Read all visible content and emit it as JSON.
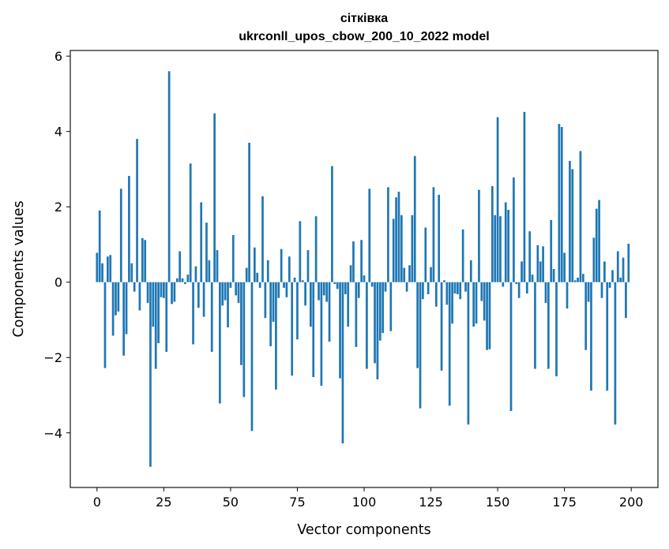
{
  "chart_data": {
    "type": "bar",
    "title": "сітківка",
    "subtitle": "ukrconll_upos_cbow_200_10_2022 model",
    "xlabel": "Vector components",
    "ylabel": "Components values",
    "xlim": [
      -10,
      210
    ],
    "ylim": [
      -5.45,
      6.15
    ],
    "xticks": [
      0,
      25,
      50,
      75,
      100,
      125,
      150,
      175,
      200
    ],
    "xtick_labels": [
      "0",
      "25",
      "50",
      "75",
      "100",
      "125",
      "150",
      "175",
      "200"
    ],
    "yticks": [
      -4,
      -2,
      0,
      2,
      4,
      6
    ],
    "ytick_labels": [
      "−4",
      "−2",
      "0",
      "2",
      "4",
      "6"
    ],
    "bar_color": "#1f77b4",
    "x": [
      0,
      1,
      2,
      3,
      4,
      5,
      6,
      7,
      8,
      9,
      10,
      11,
      12,
      13,
      14,
      15,
      16,
      17,
      18,
      19,
      20,
      21,
      22,
      23,
      24,
      25,
      26,
      27,
      28,
      29,
      30,
      31,
      32,
      33,
      34,
      35,
      36,
      37,
      38,
      39,
      40,
      41,
      42,
      43,
      44,
      45,
      46,
      47,
      48,
      49,
      50,
      51,
      52,
      53,
      54,
      55,
      56,
      57,
      58,
      59,
      60,
      61,
      62,
      63,
      64,
      65,
      66,
      67,
      68,
      69,
      70,
      71,
      72,
      73,
      74,
      75,
      76,
      77,
      78,
      79,
      80,
      81,
      82,
      83,
      84,
      85,
      86,
      87,
      88,
      89,
      90,
      91,
      92,
      93,
      94,
      95,
      96,
      97,
      98,
      99,
      100,
      101,
      102,
      103,
      104,
      105,
      106,
      107,
      108,
      109,
      110,
      111,
      112,
      113,
      114,
      115,
      116,
      117,
      118,
      119,
      120,
      121,
      122,
      123,
      124,
      125,
      126,
      127,
      128,
      129,
      130,
      131,
      132,
      133,
      134,
      135,
      136,
      137,
      138,
      139,
      140,
      141,
      142,
      143,
      144,
      145,
      146,
      147,
      148,
      149,
      150,
      151,
      152,
      153,
      154,
      155,
      156,
      157,
      158,
      159,
      160,
      161,
      162,
      163,
      164,
      165,
      166,
      167,
      168,
      169,
      170,
      171,
      172,
      173,
      174,
      175,
      176,
      177,
      178,
      179,
      180,
      181,
      182,
      183,
      184,
      185,
      186,
      187,
      188,
      189,
      190,
      191,
      192,
      193,
      194,
      195,
      196,
      197,
      198,
      199
    ],
    "values": [
      0.78,
      1.9,
      0.5,
      -2.28,
      0.68,
      0.72,
      -1.42,
      -0.88,
      -0.78,
      2.48,
      -1.95,
      -1.38,
      2.82,
      0.5,
      -0.25,
      3.8,
      -0.75,
      1.17,
      1.12,
      -0.55,
      -4.9,
      -1.18,
      -2.3,
      -1.62,
      -0.4,
      -0.42,
      -1.85,
      5.6,
      -0.58,
      -0.52,
      0.1,
      0.82,
      0.1,
      -0.05,
      0.2,
      3.15,
      -1.65,
      0.42,
      -0.68,
      2.12,
      -0.92,
      1.58,
      0.58,
      -1.85,
      4.48,
      0.85,
      -3.22,
      -0.62,
      -0.48,
      -1.2,
      -0.15,
      1.25,
      -0.35,
      -0.55,
      -2.2,
      -3.05,
      0.38,
      3.7,
      -3.95,
      0.92,
      0.25,
      -0.15,
      2.28,
      -0.95,
      0.58,
      -1.7,
      -1.05,
      -2.85,
      -0.42,
      0.88,
      -0.15,
      -0.4,
      0.68,
      -2.48,
      0.12,
      -1.52,
      1.62,
      0.05,
      -0.62,
      0.85,
      -1.18,
      -2.52,
      1.75,
      -0.48,
      -2.75,
      -0.35,
      -0.52,
      -1.58,
      3.08,
      -0.05,
      -0.18,
      -2.55,
      -4.28,
      -0.32,
      -1.18,
      0.45,
      1.08,
      -1.72,
      -0.42,
      1.12,
      0.18,
      -2.3,
      2.48,
      -0.12,
      -2.15,
      -2.58,
      -1.55,
      -1.35,
      -0.25,
      2.52,
      -1.3,
      1.68,
      2.25,
      2.4,
      1.78,
      0.38,
      -0.25,
      0.45,
      1.78,
      3.35,
      -2.28,
      -3.35,
      -0.45,
      1.45,
      -0.32,
      0.4,
      2.52,
      -0.65,
      2.32,
      -2.35,
      0.05,
      -0.6,
      -3.28,
      -1.1,
      -0.3,
      -0.32,
      -0.45,
      1.4,
      -0.25,
      -3.78,
      0.58,
      -1.18,
      -1.1,
      2.45,
      -0.5,
      -1.02,
      -1.8,
      -1.78,
      2.55,
      1.78,
      4.38,
      1.75,
      -0.12,
      2.12,
      1.92,
      -3.42,
      2.78,
      -0.05,
      -0.42,
      0.55,
      4.52,
      -0.3,
      1.35,
      0.2,
      -2.3,
      0.98,
      0.55,
      0.95,
      -0.55,
      -2.3,
      1.65,
      0.35,
      -2.5,
      4.2,
      4.12,
      0.78,
      -0.7,
      3.22,
      3.0,
      0.05,
      0.12,
      3.48,
      0.22,
      -1.8,
      -0.52,
      -2.88,
      1.18,
      1.95,
      2.18,
      -0.42,
      0.55,
      -2.88,
      -0.15,
      0.32,
      -3.78,
      0.82,
      0.12,
      0.65,
      -0.95,
      1.02
    ]
  }
}
